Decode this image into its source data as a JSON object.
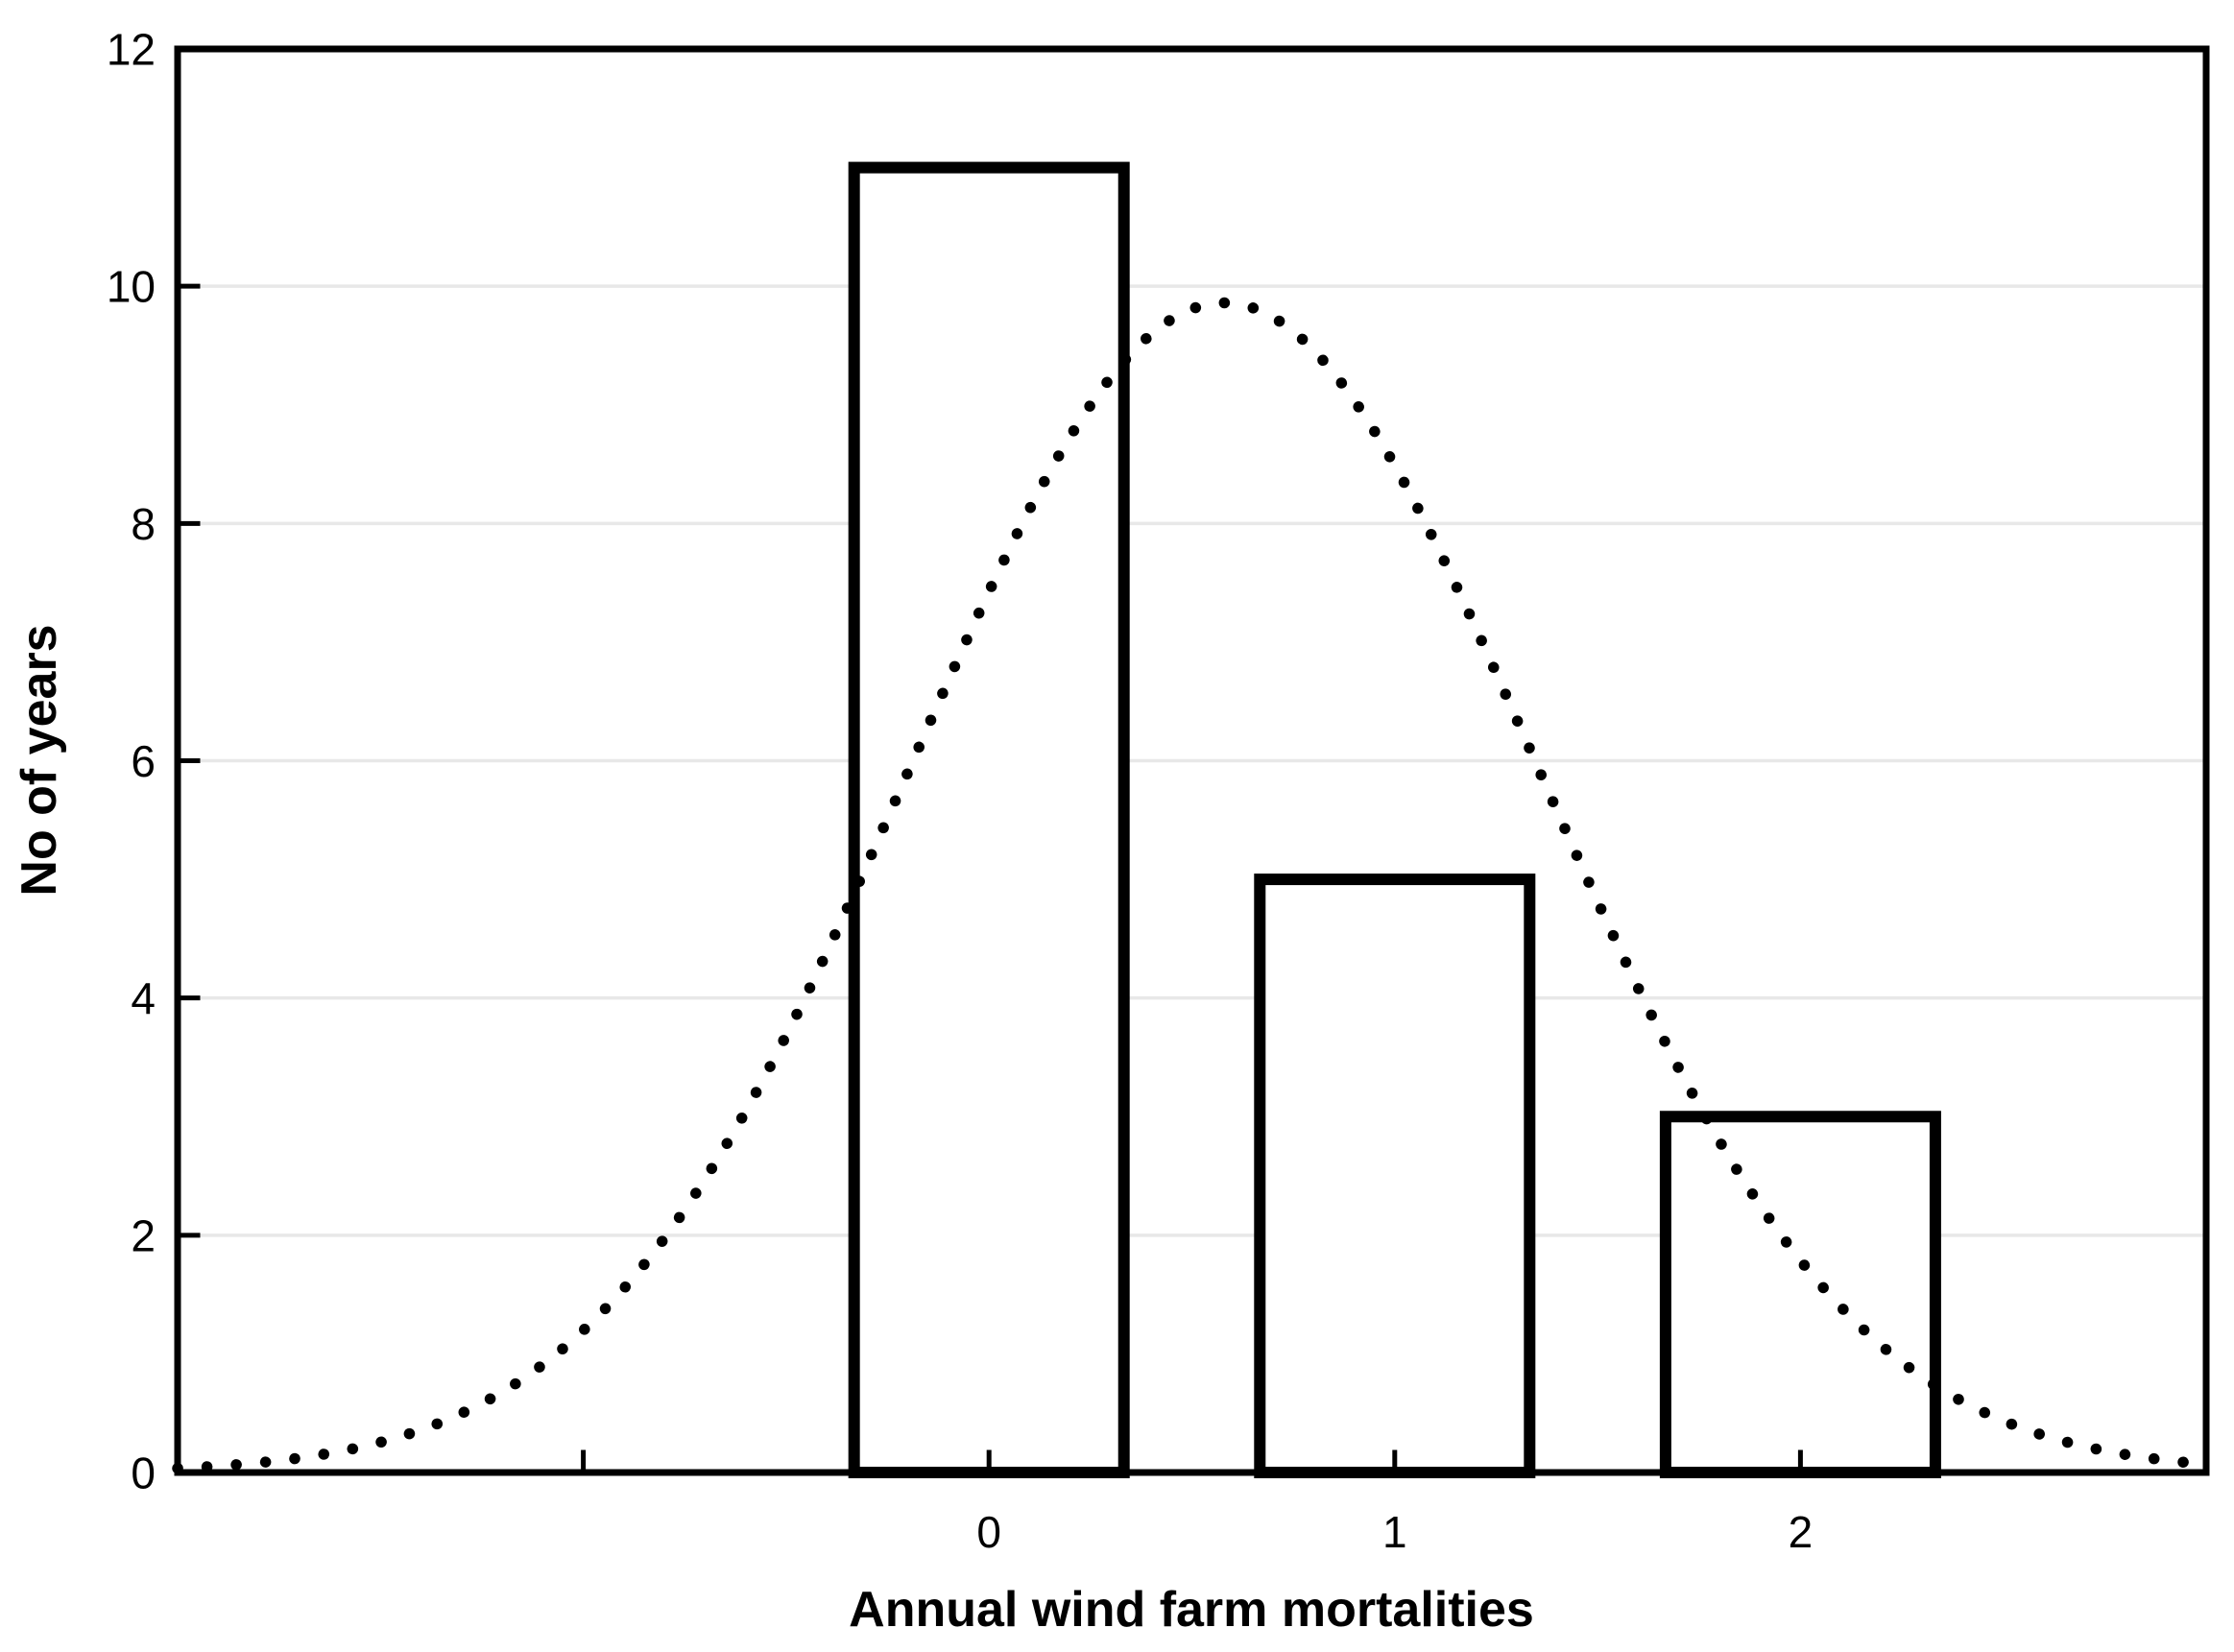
{
  "chart_data": {
    "type": "bar",
    "subtype": "histogram-with-normal-fit",
    "title": "",
    "xlabel": "Annual wind farm mortalities",
    "ylabel": "No of years",
    "categories": [
      0,
      1,
      2
    ],
    "values": [
      11,
      5,
      3
    ],
    "bar_width_units": 0.665,
    "xlim": [
      -2,
      3
    ],
    "ylim": [
      0,
      12
    ],
    "yticks": [
      0,
      2,
      4,
      6,
      8,
      10,
      12
    ],
    "ytick_labels": [
      "0",
      "2",
      "4",
      "6",
      "8",
      "10",
      "12"
    ],
    "xticks_minor": [
      -1,
      0,
      1,
      2
    ],
    "xtick_positions": [
      0,
      1,
      2
    ],
    "xtick_labels": [
      "0",
      "1",
      "2"
    ],
    "grid": "horizontal-light-gray-at-yticks",
    "legend": "none",
    "series": [
      {
        "name": "observed-frequency-bars",
        "values": [
          11,
          5,
          3
        ]
      },
      {
        "name": "expected-normal-curve",
        "style": "dotted",
        "peak": 9.86,
        "mean": 0.579,
        "sigma": 0.769
      }
    ],
    "colors": {
      "background": "#ffffff",
      "foreground": "#000000",
      "gridline": "#e8e8e8",
      "bar_fill": "#ffffff",
      "bar_stroke": "#000000",
      "curve": "#000000"
    }
  }
}
